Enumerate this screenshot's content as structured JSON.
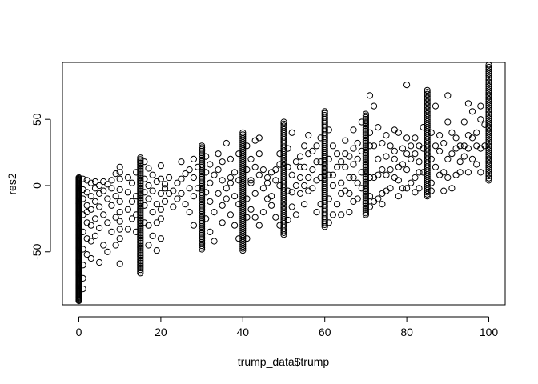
{
  "chart_data": {
    "type": "scatter",
    "title": "",
    "xlabel": "trump_data$trump",
    "ylabel": "res2",
    "xlim": [
      -4,
      104
    ],
    "ylim": [
      -90,
      93
    ],
    "x_ticks": [
      0,
      20,
      40,
      60,
      80,
      100
    ],
    "y_ticks": [
      -50,
      0,
      50
    ],
    "x_tick_labels": [
      "0",
      "20",
      "40",
      "60",
      "80",
      "100"
    ],
    "y_tick_labels": [
      "-50",
      "0",
      "50"
    ],
    "grid": false,
    "legend": "none",
    "marker": "open-circle",
    "columns": [
      {
        "x": 0,
        "ymin": -87,
        "ymax": 6,
        "n": 150
      },
      {
        "x": 15,
        "ymin": -66,
        "ymax": 21,
        "n": 70
      },
      {
        "x": 30,
        "ymin": -48,
        "ymax": 30,
        "n": 60
      },
      {
        "x": 40,
        "ymin": -49,
        "ymax": 40,
        "n": 60
      },
      {
        "x": 50,
        "ymin": -37,
        "ymax": 48,
        "n": 60
      },
      {
        "x": 60,
        "ymin": -31,
        "ymax": 56,
        "n": 60
      },
      {
        "x": 70,
        "ymin": -22,
        "ymax": 54,
        "n": 60
      },
      {
        "x": 85,
        "ymin": -8,
        "ymax": 72,
        "n": 55
      },
      {
        "x": 100,
        "ymin": 4,
        "ymax": 91,
        "n": 55
      }
    ],
    "points": [
      [
        1,
        -3
      ],
      [
        1,
        -10
      ],
      [
        1,
        -22
      ],
      [
        1,
        -35
      ],
      [
        1,
        -48
      ],
      [
        1,
        -60
      ],
      [
        1,
        -70
      ],
      [
        1,
        -78
      ],
      [
        1,
        5
      ],
      [
        2,
        -5
      ],
      [
        2,
        -15
      ],
      [
        2,
        -28
      ],
      [
        2,
        -40
      ],
      [
        2,
        -52
      ],
      [
        2,
        4
      ],
      [
        2,
        -20
      ],
      [
        3,
        -8
      ],
      [
        3,
        -18
      ],
      [
        3,
        -30
      ],
      [
        3,
        -42
      ],
      [
        3,
        -55
      ],
      [
        3,
        2
      ],
      [
        4,
        -2
      ],
      [
        4,
        -12
      ],
      [
        4,
        -25
      ],
      [
        4,
        -38
      ],
      [
        4,
        3
      ],
      [
        5,
        -6
      ],
      [
        5,
        -16
      ],
      [
        5,
        -32
      ],
      [
        5,
        -58
      ],
      [
        5,
        0
      ],
      [
        6,
        -4
      ],
      [
        6,
        -22
      ],
      [
        6,
        -45
      ],
      [
        6,
        3
      ],
      [
        7,
        -10
      ],
      [
        7,
        -28
      ],
      [
        7,
        -50
      ],
      [
        7,
        1
      ],
      [
        8,
        -2
      ],
      [
        8,
        -15
      ],
      [
        8,
        -35
      ],
      [
        8,
        4
      ],
      [
        9,
        -8
      ],
      [
        9,
        -24
      ],
      [
        9,
        -45
      ],
      [
        9,
        9
      ],
      [
        10,
        -3
      ],
      [
        10,
        -20
      ],
      [
        10,
        -40
      ],
      [
        10,
        -59
      ],
      [
        10,
        14
      ],
      [
        10,
        10
      ],
      [
        10,
        5
      ],
      [
        10,
        -12
      ],
      [
        10,
        -27
      ],
      [
        10,
        -33
      ],
      [
        12,
        -5
      ],
      [
        12,
        -18
      ],
      [
        12,
        -33
      ],
      [
        12,
        6
      ],
      [
        13,
        -12
      ],
      [
        13,
        -25
      ],
      [
        13,
        2
      ],
      [
        14,
        -8
      ],
      [
        14,
        -22
      ],
      [
        14,
        -35
      ],
      [
        14,
        10
      ],
      [
        16,
        -5
      ],
      [
        16,
        -15
      ],
      [
        16,
        -28
      ],
      [
        16,
        18
      ],
      [
        16,
        5
      ],
      [
        17,
        -10
      ],
      [
        17,
        -30
      ],
      [
        17,
        -45
      ],
      [
        17,
        13
      ],
      [
        17,
        0
      ],
      [
        18,
        -4
      ],
      [
        18,
        -20
      ],
      [
        18,
        -38
      ],
      [
        18,
        8
      ],
      [
        19,
        -14
      ],
      [
        19,
        -28
      ],
      [
        19,
        3
      ],
      [
        19,
        -49
      ],
      [
        20,
        -6
      ],
      [
        20,
        -18
      ],
      [
        20,
        -25
      ],
      [
        20,
        5
      ],
      [
        20,
        15
      ],
      [
        20,
        -40
      ],
      [
        21,
        -2
      ],
      [
        21,
        -12
      ],
      [
        21,
        1
      ],
      [
        22,
        -6
      ],
      [
        22,
        6
      ],
      [
        23,
        -4
      ],
      [
        23,
        -16
      ],
      [
        24,
        2
      ],
      [
        24,
        -10
      ],
      [
        25,
        -6
      ],
      [
        25,
        18
      ],
      [
        25,
        5
      ],
      [
        26,
        -14
      ],
      [
        26,
        9
      ],
      [
        27,
        -2
      ],
      [
        27,
        12
      ],
      [
        27,
        -20
      ],
      [
        28,
        6
      ],
      [
        28,
        -8
      ],
      [
        28,
        20
      ],
      [
        28,
        -30
      ],
      [
        29,
        -2
      ],
      [
        29,
        14
      ],
      [
        31,
        -5
      ],
      [
        31,
        10
      ],
      [
        31,
        -25
      ],
      [
        31,
        22
      ],
      [
        32,
        2
      ],
      [
        32,
        -12
      ],
      [
        32,
        16
      ],
      [
        32,
        -35
      ],
      [
        33,
        8
      ],
      [
        33,
        -20
      ],
      [
        33,
        -42
      ],
      [
        34,
        -6
      ],
      [
        34,
        12
      ],
      [
        34,
        24
      ],
      [
        35,
        4
      ],
      [
        35,
        -15
      ],
      [
        35,
        18
      ],
      [
        35,
        -28
      ],
      [
        36,
        -2
      ],
      [
        36,
        32
      ],
      [
        36,
        -10
      ],
      [
        37,
        6
      ],
      [
        37,
        20
      ],
      [
        37,
        -22
      ],
      [
        37,
        2
      ],
      [
        38,
        -8
      ],
      [
        38,
        10
      ],
      [
        38,
        -30
      ],
      [
        39,
        4
      ],
      [
        39,
        -14
      ],
      [
        39,
        24
      ],
      [
        39,
        -40
      ],
      [
        41,
        -10
      ],
      [
        41,
        12
      ],
      [
        41,
        30
      ],
      [
        41,
        -40
      ],
      [
        41,
        -24
      ],
      [
        42,
        4
      ],
      [
        42,
        -18
      ],
      [
        42,
        20
      ],
      [
        42,
        2
      ],
      [
        43,
        -6
      ],
      [
        43,
        14
      ],
      [
        43,
        34
      ],
      [
        43,
        -24
      ],
      [
        44,
        8
      ],
      [
        44,
        -30
      ],
      [
        44,
        24
      ],
      [
        44,
        36
      ],
      [
        45,
        -2
      ],
      [
        45,
        12
      ],
      [
        45,
        -20
      ],
      [
        46,
        6
      ],
      [
        46,
        -10
      ],
      [
        46,
        2
      ],
      [
        47,
        10
      ],
      [
        47,
        -8
      ],
      [
        47,
        -15
      ],
      [
        48,
        4
      ],
      [
        48,
        12
      ],
      [
        48,
        -24
      ],
      [
        49,
        0
      ],
      [
        49,
        16
      ],
      [
        49,
        -30
      ],
      [
        49,
        24
      ],
      [
        51,
        -4
      ],
      [
        51,
        14
      ],
      [
        51,
        28
      ],
      [
        51,
        -26
      ],
      [
        52,
        8
      ],
      [
        52,
        -16
      ],
      [
        52,
        40
      ],
      [
        52,
        -5
      ],
      [
        53,
        18
      ],
      [
        53,
        0
      ],
      [
        53,
        -22
      ],
      [
        54,
        -6
      ],
      [
        54,
        22
      ],
      [
        54,
        6
      ],
      [
        54,
        14
      ],
      [
        55,
        14
      ],
      [
        55,
        30
      ],
      [
        55,
        -14
      ],
      [
        55,
        0
      ],
      [
        56,
        6
      ],
      [
        56,
        -4
      ],
      [
        56,
        38
      ],
      [
        56,
        24
      ],
      [
        57,
        26
      ],
      [
        57,
        12
      ],
      [
        57,
        -2
      ],
      [
        58,
        4
      ],
      [
        58,
        -20
      ],
      [
        58,
        30
      ],
      [
        58,
        18
      ],
      [
        59,
        18
      ],
      [
        59,
        -14
      ],
      [
        59,
        36
      ],
      [
        59,
        6
      ],
      [
        61,
        -10
      ],
      [
        61,
        20
      ],
      [
        61,
        42
      ],
      [
        61,
        -28
      ],
      [
        61,
        8
      ],
      [
        62,
        8
      ],
      [
        62,
        -22
      ],
      [
        62,
        30
      ],
      [
        62,
        0
      ],
      [
        63,
        24
      ],
      [
        63,
        -14
      ],
      [
        63,
        14
      ],
      [
        64,
        2
      ],
      [
        64,
        18
      ],
      [
        64,
        -22
      ],
      [
        64,
        -6
      ],
      [
        65,
        14
      ],
      [
        65,
        34
      ],
      [
        65,
        -4
      ],
      [
        65,
        24
      ],
      [
        66,
        -6
      ],
      [
        66,
        22
      ],
      [
        66,
        6
      ],
      [
        66,
        -20
      ],
      [
        67,
        6
      ],
      [
        67,
        28
      ],
      [
        67,
        -12
      ],
      [
        67,
        42
      ],
      [
        67,
        16
      ],
      [
        68,
        -10
      ],
      [
        68,
        20
      ],
      [
        68,
        32
      ],
      [
        68,
        2
      ],
      [
        69,
        26
      ],
      [
        69,
        -2
      ],
      [
        69,
        48
      ],
      [
        69,
        10
      ],
      [
        71,
        6
      ],
      [
        71,
        -16
      ],
      [
        71,
        68
      ],
      [
        71,
        30
      ],
      [
        71,
        -8
      ],
      [
        71,
        40
      ],
      [
        72,
        30
      ],
      [
        72,
        6
      ],
      [
        72,
        60
      ],
      [
        72,
        -12
      ],
      [
        73,
        -10
      ],
      [
        73,
        20
      ],
      [
        73,
        44
      ],
      [
        73,
        8
      ],
      [
        74,
        12
      ],
      [
        74,
        -6
      ],
      [
        74,
        32
      ],
      [
        74,
        -14
      ],
      [
        75,
        22
      ],
      [
        75,
        -4
      ],
      [
        75,
        38
      ],
      [
        75,
        8
      ],
      [
        76,
        -2
      ],
      [
        76,
        12
      ],
      [
        76,
        30
      ],
      [
        77,
        26
      ],
      [
        77,
        6
      ],
      [
        77,
        42
      ],
      [
        77,
        20
      ],
      [
        78,
        4
      ],
      [
        78,
        14
      ],
      [
        78,
        40
      ],
      [
        78,
        -8
      ],
      [
        79,
        16
      ],
      [
        79,
        -2
      ],
      [
        79,
        28
      ],
      [
        80,
        12
      ],
      [
        80,
        24
      ],
      [
        80,
        76
      ],
      [
        80,
        36
      ],
      [
        80,
        -2
      ],
      [
        81,
        20
      ],
      [
        81,
        2
      ],
      [
        81,
        30
      ],
      [
        82,
        24
      ],
      [
        82,
        6
      ],
      [
        82,
        -5
      ],
      [
        82,
        36
      ],
      [
        83,
        30
      ],
      [
        83,
        -2
      ],
      [
        83,
        18
      ],
      [
        83,
        10
      ],
      [
        84,
        10
      ],
      [
        84,
        28
      ],
      [
        84,
        44
      ],
      [
        86,
        20
      ],
      [
        86,
        2
      ],
      [
        86,
        40
      ],
      [
        86,
        -4
      ],
      [
        87,
        14
      ],
      [
        87,
        30
      ],
      [
        87,
        60
      ],
      [
        88,
        26
      ],
      [
        88,
        8
      ],
      [
        88,
        38
      ],
      [
        89,
        10
      ],
      [
        89,
        -4
      ],
      [
        89,
        32
      ],
      [
        90,
        20
      ],
      [
        90,
        48
      ],
      [
        90,
        68
      ],
      [
        90,
        6
      ],
      [
        91,
        24
      ],
      [
        91,
        -2
      ],
      [
        91,
        40
      ],
      [
        92,
        36
      ],
      [
        92,
        8
      ],
      [
        92,
        28
      ],
      [
        93,
        18
      ],
      [
        93,
        30
      ],
      [
        93,
        10
      ],
      [
        94,
        30
      ],
      [
        94,
        48
      ],
      [
        94,
        22
      ],
      [
        95,
        28
      ],
      [
        95,
        10
      ],
      [
        95,
        62
      ],
      [
        95,
        38
      ],
      [
        96,
        36
      ],
      [
        96,
        20
      ],
      [
        96,
        56
      ],
      [
        97,
        30
      ],
      [
        97,
        40
      ],
      [
        97,
        16
      ],
      [
        98,
        28
      ],
      [
        98,
        50
      ],
      [
        98,
        10
      ],
      [
        98,
        60
      ],
      [
        99,
        46
      ],
      [
        99,
        30
      ]
    ]
  }
}
